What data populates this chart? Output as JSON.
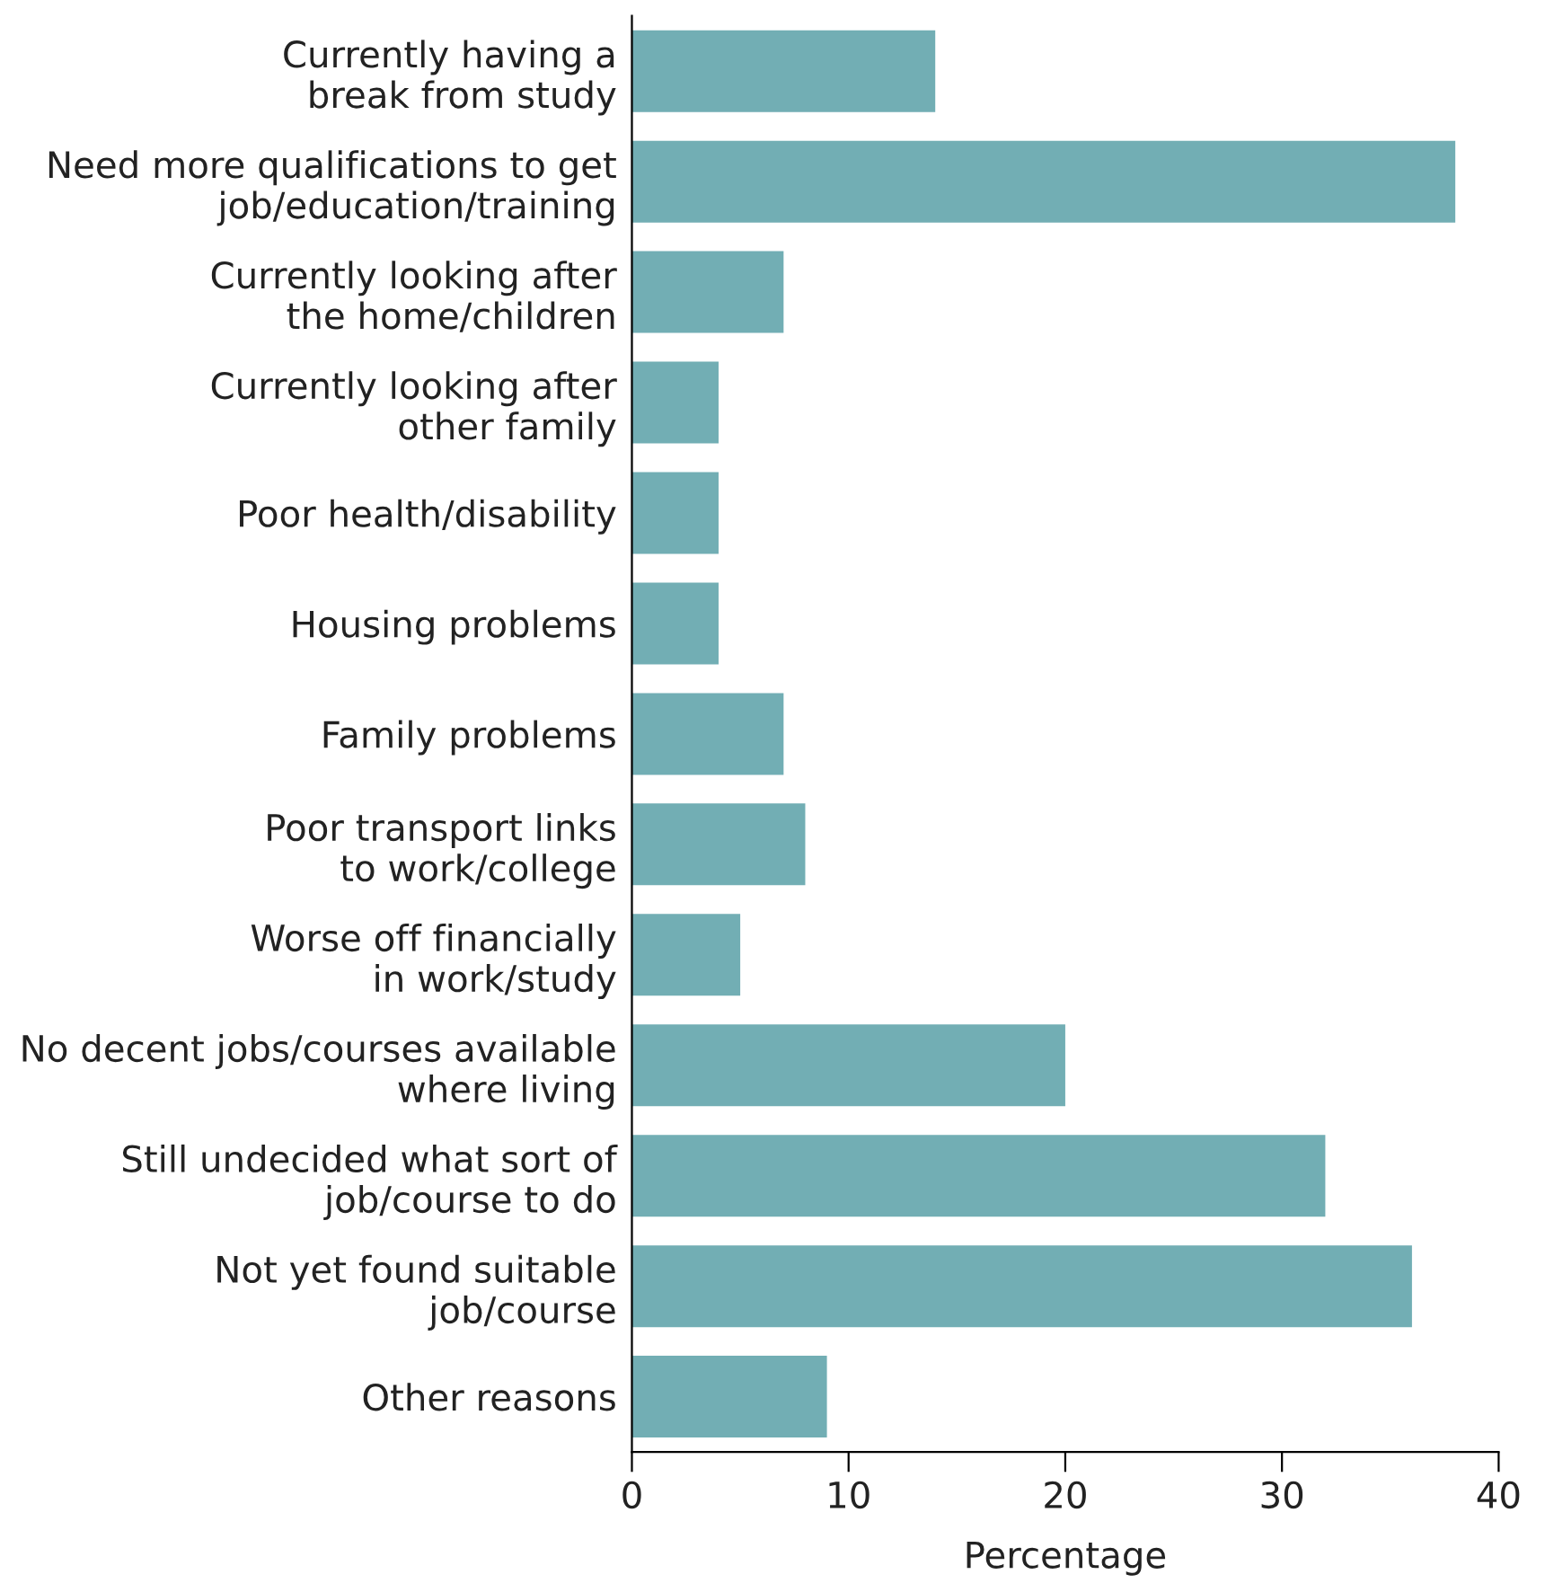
{
  "chart_data": {
    "type": "bar",
    "orientation": "horizontal",
    "xlabel": "Percentage",
    "categories": [
      "Currently having a\nbreak from study",
      "Need more qualifications to get\njob/education/training",
      "Currently looking after\nthe home/children",
      "Currently looking after\nother family",
      "Poor health/disability",
      "Housing problems",
      "Family problems",
      "Poor transport links\nto work/college",
      "Worse off financially\nin work/study",
      "No decent jobs/courses available\nwhere living",
      "Still undecided what sort of\njob/course to do",
      "Not yet found suitable\njob/course",
      "Other reasons"
    ],
    "values": [
      14,
      38,
      7,
      4,
      4,
      4,
      7,
      8,
      5,
      20,
      32,
      36,
      9
    ],
    "color": "#72aeb4",
    "xlim": [
      0,
      40
    ],
    "xticks": [
      0,
      10,
      20,
      30,
      40
    ],
    "grid": false,
    "legend": false
  }
}
